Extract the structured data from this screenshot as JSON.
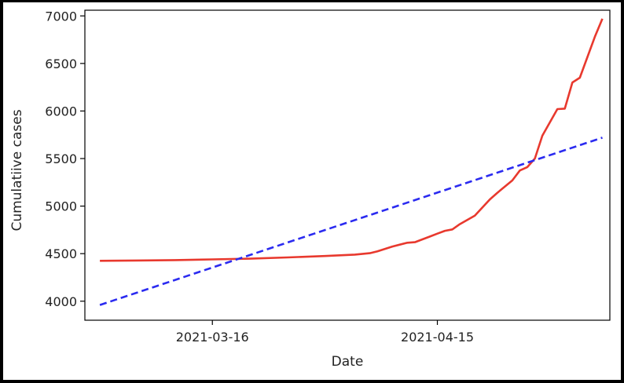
{
  "chart_data": {
    "type": "line",
    "title": "",
    "xlabel": "Date",
    "ylabel": "Cumulatiive cases",
    "xlim": [
      "2021-02-27",
      "2021-05-08"
    ],
    "ylim": [
      3800,
      7060
    ],
    "y_ticks": [
      4000,
      4500,
      5000,
      5500,
      6000,
      6500,
      7000
    ],
    "x_ticks": [
      "2021-03-16",
      "2021-04-15"
    ],
    "grid": false,
    "legend": "none",
    "series": [
      {
        "style": "solid",
        "color": "#e8392e",
        "points": [
          [
            "2021-03-01",
            4425
          ],
          [
            "2021-03-06",
            4428
          ],
          [
            "2021-03-11",
            4432
          ],
          [
            "2021-03-16",
            4440
          ],
          [
            "2021-03-21",
            4447
          ],
          [
            "2021-03-26",
            4460
          ],
          [
            "2021-03-31",
            4475
          ],
          [
            "2021-04-04",
            4490
          ],
          [
            "2021-04-06",
            4505
          ],
          [
            "2021-04-07",
            4525
          ],
          [
            "2021-04-09",
            4575
          ],
          [
            "2021-04-11",
            4615
          ],
          [
            "2021-04-12",
            4620
          ],
          [
            "2021-04-14",
            4680
          ],
          [
            "2021-04-15",
            4710
          ],
          [
            "2021-04-16",
            4740
          ],
          [
            "2021-04-17",
            4755
          ],
          [
            "2021-04-18",
            4810
          ],
          [
            "2021-04-20",
            4900
          ],
          [
            "2021-04-22",
            5070
          ],
          [
            "2021-04-23",
            5140
          ],
          [
            "2021-04-25",
            5270
          ],
          [
            "2021-04-26",
            5375
          ],
          [
            "2021-04-27",
            5410
          ],
          [
            "2021-04-28",
            5500
          ],
          [
            "2021-04-29",
            5740
          ],
          [
            "2021-05-01",
            6020
          ],
          [
            "2021-05-02",
            6025
          ],
          [
            "2021-05-03",
            6300
          ],
          [
            "2021-05-04",
            6350
          ],
          [
            "2021-05-06",
            6780
          ],
          [
            "2021-05-07",
            6970
          ]
        ]
      },
      {
        "style": "dashed",
        "color": "#2b2bf0",
        "points": [
          [
            "2021-03-01",
            3960
          ],
          [
            "2021-05-07",
            5720
          ]
        ]
      }
    ]
  }
}
